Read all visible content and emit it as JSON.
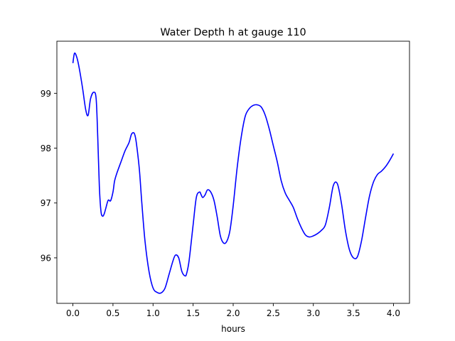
{
  "chart_data": {
    "type": "line",
    "title": "Water Depth h at gauge 110",
    "xlabel": "hours",
    "ylabel": "",
    "xlim": [
      -0.2,
      4.2
    ],
    "ylim": [
      95.17,
      99.95
    ],
    "xticks": [
      0.0,
      0.5,
      1.0,
      1.5,
      2.0,
      2.5,
      3.0,
      3.5,
      4.0
    ],
    "xtick_labels": [
      "0.0",
      "0.5",
      "1.0",
      "1.5",
      "2.0",
      "2.5",
      "3.0",
      "3.5",
      "4.0"
    ],
    "yticks": [
      96,
      97,
      98,
      99
    ],
    "ytick_labels": [
      "96",
      "97",
      "98",
      "99"
    ],
    "grid": false,
    "line_color": "#0000ff",
    "series": [
      {
        "x": [
          0.0,
          0.02,
          0.05,
          0.08,
          0.12,
          0.16,
          0.19,
          0.22,
          0.26,
          0.29,
          0.31,
          0.33,
          0.35,
          0.37,
          0.39,
          0.41,
          0.44,
          0.47,
          0.5,
          0.52,
          0.55,
          0.6,
          0.65,
          0.7,
          0.73,
          0.76,
          0.78,
          0.8,
          0.83,
          0.86,
          0.9,
          0.95,
          1.0,
          1.05,
          1.1,
          1.15,
          1.2,
          1.25,
          1.28,
          1.32,
          1.36,
          1.4,
          1.42,
          1.45,
          1.5,
          1.54,
          1.58,
          1.6,
          1.62,
          1.65,
          1.68,
          1.72,
          1.76,
          1.8,
          1.84,
          1.88,
          1.92,
          1.96,
          2.0,
          2.05,
          2.1,
          2.15,
          2.2,
          2.25,
          2.3,
          2.35,
          2.4,
          2.45,
          2.5,
          2.55,
          2.6,
          2.65,
          2.7,
          2.75,
          2.8,
          2.85,
          2.9,
          2.95,
          3.0,
          3.05,
          3.1,
          3.15,
          3.2,
          3.25,
          3.3,
          3.35,
          3.4,
          3.45,
          3.5,
          3.55,
          3.6,
          3.65,
          3.7,
          3.75,
          3.8,
          3.85,
          3.9,
          3.95,
          4.0
        ],
        "y": [
          99.55,
          99.73,
          99.65,
          99.45,
          99.1,
          98.7,
          98.6,
          98.9,
          99.02,
          98.9,
          98.2,
          97.3,
          96.85,
          96.76,
          96.8,
          96.9,
          97.05,
          97.04,
          97.2,
          97.4,
          97.55,
          97.75,
          97.95,
          98.1,
          98.25,
          98.28,
          98.2,
          98.0,
          97.6,
          97.0,
          96.3,
          95.75,
          95.45,
          95.37,
          95.36,
          95.45,
          95.7,
          95.95,
          96.05,
          96.0,
          95.75,
          95.67,
          95.72,
          95.95,
          96.6,
          97.1,
          97.2,
          97.15,
          97.1,
          97.15,
          97.24,
          97.2,
          97.05,
          96.75,
          96.4,
          96.27,
          96.3,
          96.5,
          96.95,
          97.65,
          98.2,
          98.58,
          98.72,
          98.78,
          98.79,
          98.75,
          98.6,
          98.35,
          98.05,
          97.75,
          97.4,
          97.18,
          97.05,
          96.92,
          96.72,
          96.55,
          96.42,
          96.38,
          96.4,
          96.44,
          96.5,
          96.6,
          96.92,
          97.32,
          97.35,
          97.0,
          96.5,
          96.15,
          96.0,
          96.02,
          96.3,
          96.72,
          97.12,
          97.38,
          97.52,
          97.58,
          97.66,
          97.77,
          97.9
        ]
      }
    ]
  }
}
